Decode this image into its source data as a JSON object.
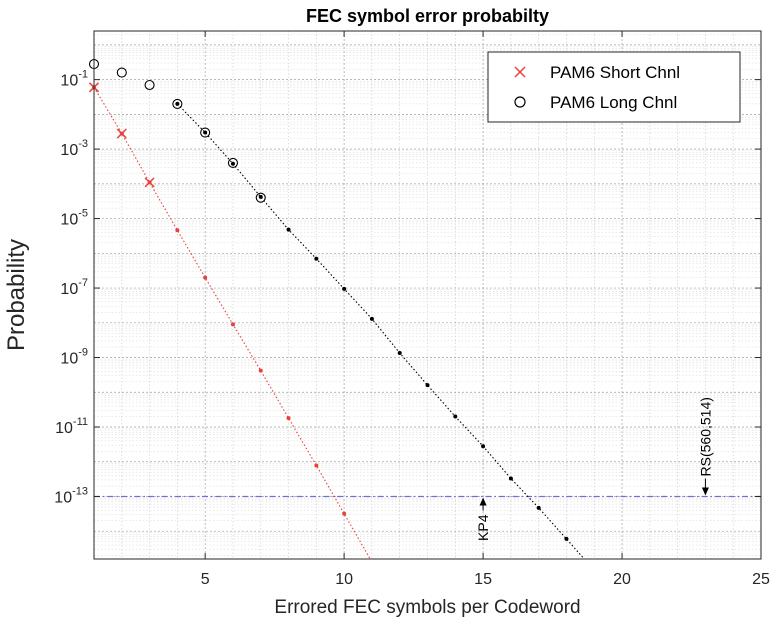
{
  "chart_data": {
    "type": "scatter",
    "title": "FEC symbol error probabilty",
    "xlabel": "Errored FEC symbols per Codeword",
    "ylabel": "Probability",
    "xlim": [
      1,
      25
    ],
    "ylim_log10": [
      -14.8,
      0.4
    ],
    "yscale": "log",
    "grid": true,
    "minor_grid": true,
    "legend_position": "top-right",
    "x_ticks": [
      5,
      10,
      15,
      20,
      25
    ],
    "y_ticks": [
      {
        "exp": -1,
        "label_base": "10",
        "label_exp": "-1"
      },
      {
        "exp": -3,
        "label_base": "10",
        "label_exp": "-3"
      },
      {
        "exp": -5,
        "label_base": "10",
        "label_exp": "-5"
      },
      {
        "exp": -7,
        "label_base": "10",
        "label_exp": "-7"
      },
      {
        "exp": -9,
        "label_base": "10",
        "label_exp": "-9"
      },
      {
        "exp": -11,
        "label_base": "10",
        "label_exp": "-11"
      },
      {
        "exp": -13,
        "label_base": "10",
        "label_exp": "-13"
      }
    ],
    "series": [
      {
        "name": "PAM6 Short Chnl",
        "color": "#e8413c",
        "marker": "x",
        "marker_points": [
          [
            1,
            0.06
          ],
          [
            2,
            0.0028
          ],
          [
            3,
            0.00011
          ]
        ],
        "curve_points": [
          [
            1,
            0.06
          ],
          [
            2,
            0.0028
          ],
          [
            3,
            0.00011
          ],
          [
            4,
            4.6e-06
          ],
          [
            5,
            2e-07
          ],
          [
            6,
            9e-09
          ],
          [
            7,
            4.2e-10
          ],
          [
            8,
            1.8e-11
          ],
          [
            9,
            7.8e-13
          ],
          [
            10,
            3.2e-14
          ],
          [
            11,
            1.3e-15
          ]
        ]
      },
      {
        "name": "PAM6 Long Chnl",
        "color": "#000000",
        "marker": "o",
        "marker_points": [
          [
            1,
            0.28
          ],
          [
            2,
            0.16
          ],
          [
            3,
            0.07
          ],
          [
            4,
            0.02
          ],
          [
            5,
            0.003
          ],
          [
            6,
            0.0004
          ],
          [
            7,
            4e-05
          ]
        ],
        "curve_points": [
          [
            4,
            0.02
          ],
          [
            5,
            0.003
          ],
          [
            6,
            0.00038
          ],
          [
            7,
            4.2e-05
          ],
          [
            8,
            4.8e-06
          ],
          [
            9,
            7e-07
          ],
          [
            10,
            9.5e-08
          ],
          [
            11,
            1.3e-08
          ],
          [
            12,
            1.35e-09
          ],
          [
            13,
            1.6e-10
          ],
          [
            14,
            2e-11
          ],
          [
            15,
            2.8e-12
          ],
          [
            16,
            3.3e-13
          ],
          [
            17,
            4.7e-14
          ],
          [
            18,
            6e-15
          ],
          [
            19,
            7.5e-16
          ]
        ]
      }
    ],
    "reference_line": {
      "y": 1e-13,
      "color": "#6f6fd6"
    },
    "annotations": [
      {
        "text": "KP4",
        "x": 15,
        "y": 1e-13,
        "orientation": "vertical"
      },
      {
        "text": "RS(560,514)",
        "x": 23,
        "y": 1e-13,
        "orientation": "vertical"
      }
    ]
  }
}
